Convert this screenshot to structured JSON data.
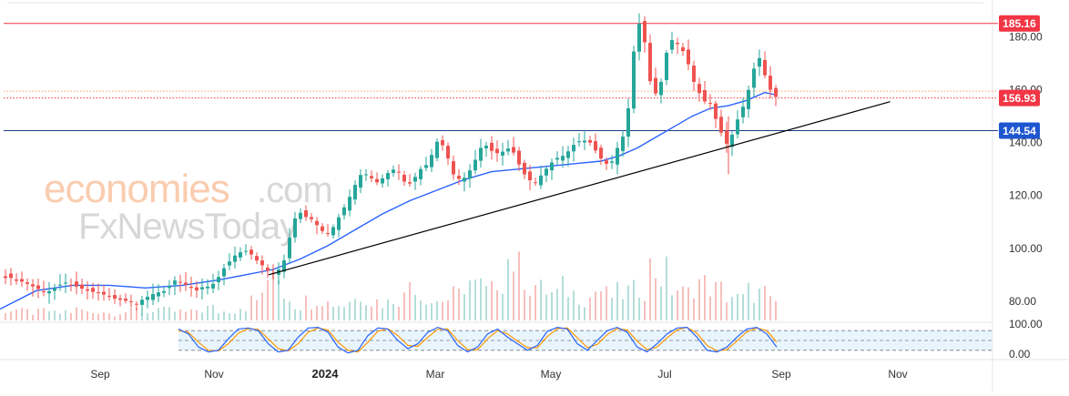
{
  "watermark": {
    "line1": "economies",
    "line1_suffix": ".com",
    "line2": "FxNewsToday"
  },
  "chart_data": {
    "type": "candlestick",
    "colors": {
      "up": "#26a69a",
      "down": "#ef5350",
      "ma": "#2962ff",
      "stoch_k": "#2962ff",
      "stoch_d": "#ff9800",
      "resistance": "#f23645",
      "support": "#1e3a8a",
      "trendline": "#000000"
    },
    "price_axis": {
      "ticks": [
        "180.00",
        "160.00",
        "140.00",
        "120.00",
        "100.00",
        "80.00"
      ],
      "range": [
        72,
        194
      ]
    },
    "time_axis": {
      "ticks": [
        "Sep",
        "Nov",
        "2024",
        "Mar",
        "May",
        "Jul",
        "Sep",
        "Nov"
      ],
      "bold_tick": "2024"
    },
    "price_labels": [
      {
        "value": 185.16,
        "text": "185.16",
        "color": "#f23645"
      },
      {
        "value": 156.93,
        "text": "156.93",
        "color": "#f23645"
      },
      {
        "value": 144.54,
        "text": "144.54",
        "color": "#1e56d0"
      }
    ],
    "horizontal_lines": [
      {
        "value": 185.16,
        "style": "solid",
        "color": "#f23645"
      },
      {
        "value": 159.5,
        "style": "dotted",
        "color": "#f5a06a"
      },
      {
        "value": 156.93,
        "style": "dotted",
        "color": "#f23645"
      },
      {
        "value": 144.54,
        "style": "solid",
        "color": "#1e3a8a"
      }
    ],
    "trendline": {
      "from": {
        "date": "2023-12-01",
        "price": 90.0
      },
      "to": {
        "date": "2024-10-28",
        "price": 155.5
      }
    },
    "oscillator": {
      "name": "Stochastic",
      "ticks": [
        "100.00",
        "0.00"
      ],
      "bands": [
        80,
        50,
        20
      ]
    },
    "series": [
      {
        "name": "Price",
        "points": [
          [
            0,
            90
          ],
          [
            20,
            88
          ],
          [
            40,
            85
          ],
          [
            50,
            83
          ],
          [
            60,
            85
          ],
          [
            70,
            87
          ],
          [
            80,
            86
          ],
          [
            95,
            84
          ],
          [
            110,
            83
          ],
          [
            125,
            81
          ],
          [
            140,
            80
          ],
          [
            150,
            79
          ],
          [
            158,
            81
          ],
          [
            170,
            83
          ],
          [
            183,
            84
          ],
          [
            190,
            88
          ],
          [
            200,
            87
          ],
          [
            215,
            84
          ],
          [
            230,
            85
          ],
          [
            238,
            88
          ],
          [
            245,
            92
          ],
          [
            252,
            95
          ],
          [
            260,
            98
          ],
          [
            268,
            99
          ],
          [
            275,
            98
          ],
          [
            283,
            95
          ],
          [
            290,
            93
          ],
          [
            298,
            90
          ],
          [
            306,
            92
          ],
          [
            313,
            96
          ],
          [
            318,
            104
          ],
          [
            322,
            110
          ],
          [
            328,
            114
          ],
          [
            335,
            112
          ],
          [
            342,
            111
          ],
          [
            350,
            108
          ],
          [
            358,
            105
          ],
          [
            366,
            108
          ],
          [
            374,
            113
          ],
          [
            382,
            118
          ],
          [
            390,
            124
          ],
          [
            398,
            129
          ],
          [
            406,
            127
          ],
          [
            414,
            125
          ],
          [
            422,
            127
          ],
          [
            430,
            130
          ],
          [
            438,
            129
          ],
          [
            446,
            124
          ],
          [
            454,
            126
          ],
          [
            462,
            130
          ],
          [
            470,
            132
          ],
          [
            476,
            137
          ],
          [
            482,
            142
          ],
          [
            490,
            136
          ],
          [
            498,
            128
          ],
          [
            505,
            126
          ],
          [
            512,
            127
          ],
          [
            520,
            132
          ],
          [
            528,
            138
          ],
          [
            535,
            139
          ],
          [
            542,
            136
          ],
          [
            550,
            136
          ],
          [
            557,
            138
          ],
          [
            565,
            136
          ],
          [
            572,
            130
          ],
          [
            580,
            126
          ],
          [
            588,
            125
          ],
          [
            595,
            128
          ],
          [
            602,
            131
          ],
          [
            610,
            134
          ],
          [
            618,
            135
          ],
          [
            625,
            137
          ],
          [
            632,
            140
          ],
          [
            640,
            141
          ],
          [
            648,
            140
          ],
          [
            656,
            136
          ],
          [
            664,
            132
          ],
          [
            671,
            132
          ],
          [
            678,
            138
          ],
          [
            685,
            143
          ],
          [
            690,
            153
          ],
          [
            694,
            170
          ],
          [
            698,
            179
          ],
          [
            702,
            185
          ],
          [
            706,
            181
          ],
          [
            710,
            175
          ],
          [
            713,
            165
          ],
          [
            717,
            158
          ],
          [
            722,
            159
          ],
          [
            727,
            164
          ],
          [
            732,
            174
          ],
          [
            737,
            179
          ],
          [
            742,
            178
          ],
          [
            748,
            176
          ],
          [
            754,
            172
          ],
          [
            760,
            165
          ],
          [
            765,
            160
          ],
          [
            770,
            158
          ],
          [
            775,
            155
          ],
          [
            780,
            155
          ],
          [
            785,
            150
          ],
          [
            790,
            145
          ],
          [
            795,
            142
          ],
          [
            800,
            138
          ],
          [
            804,
            143
          ],
          [
            808,
            148
          ],
          [
            813,
            150
          ],
          [
            818,
            156
          ],
          [
            822,
            160
          ],
          [
            826,
            166
          ],
          [
            830,
            170
          ],
          [
            834,
            172
          ],
          [
            838,
            168
          ],
          [
            842,
            163
          ],
          [
            846,
            160
          ],
          [
            850,
            158
          ],
          [
            853,
            157
          ]
        ]
      },
      {
        "name": "MA",
        "points": [
          [
            0,
            77
          ],
          [
            40,
            84
          ],
          [
            80,
            86
          ],
          [
            120,
            86
          ],
          [
            160,
            85
          ],
          [
            200,
            86
          ],
          [
            240,
            88
          ],
          [
            270,
            90
          ],
          [
            300,
            92
          ],
          [
            330,
            96
          ],
          [
            360,
            101
          ],
          [
            390,
            107
          ],
          [
            420,
            113
          ],
          [
            450,
            118
          ],
          [
            480,
            122
          ],
          [
            510,
            126
          ],
          [
            540,
            129
          ],
          [
            570,
            130
          ],
          [
            600,
            131
          ],
          [
            630,
            132
          ],
          [
            660,
            133
          ],
          [
            680,
            135
          ],
          [
            700,
            138
          ],
          [
            720,
            142
          ],
          [
            740,
            146
          ],
          [
            760,
            150
          ],
          [
            780,
            153
          ],
          [
            800,
            154
          ],
          [
            820,
            156
          ],
          [
            840,
            159
          ],
          [
            853,
            158
          ]
        ]
      },
      {
        "name": "Volume",
        "values": [
          12,
          10,
          9,
          11,
          8,
          10,
          12,
          9,
          11,
          8,
          10,
          12,
          9,
          13,
          11,
          10,
          9,
          12,
          14,
          10,
          12,
          16,
          22,
          34,
          60,
          30,
          18,
          22,
          26,
          20,
          18,
          24,
          30,
          22,
          20,
          26,
          46,
          28,
          22,
          24,
          28,
          44,
          38,
          32,
          50,
          70,
          56,
          40,
          34,
          30,
          36,
          30,
          26,
          34,
          28,
          30,
          32,
          40,
          58,
          52,
          36,
          30,
          44,
          40,
          34,
          28,
          24,
          32,
          30,
          20
        ]
      },
      {
        "name": "Stoch_K",
        "values": [
          85,
          70,
          30,
          15,
          20,
          55,
          85,
          88,
          80,
          40,
          15,
          20,
          60,
          88,
          90,
          75,
          30,
          12,
          20,
          65,
          88,
          85,
          50,
          25,
          40,
          75,
          90,
          80,
          35,
          15,
          30,
          70,
          85,
          60,
          40,
          20,
          35,
          78,
          90,
          85,
          40,
          20,
          50,
          80,
          90,
          75,
          30,
          15,
          40,
          70,
          88,
          90,
          60,
          20,
          15,
          30,
          60,
          85,
          90,
          70,
          30
        ]
      },
      {
        "name": "Stoch_D",
        "values": [
          80,
          75,
          45,
          20,
          18,
          40,
          72,
          86,
          84,
          55,
          25,
          18,
          40,
          75,
          88,
          82,
          45,
          20,
          15,
          45,
          78,
          86,
          65,
          35,
          32,
          60,
          84,
          85,
          50,
          22,
          22,
          55,
          80,
          70,
          48,
          28,
          28,
          62,
          86,
          88,
          58,
          28,
          38,
          68,
          86,
          82,
          48,
          22,
          30,
          58,
          82,
          90,
          72,
          35,
          18,
          22,
          48,
          76,
          88,
          80,
          45
        ]
      }
    ]
  }
}
